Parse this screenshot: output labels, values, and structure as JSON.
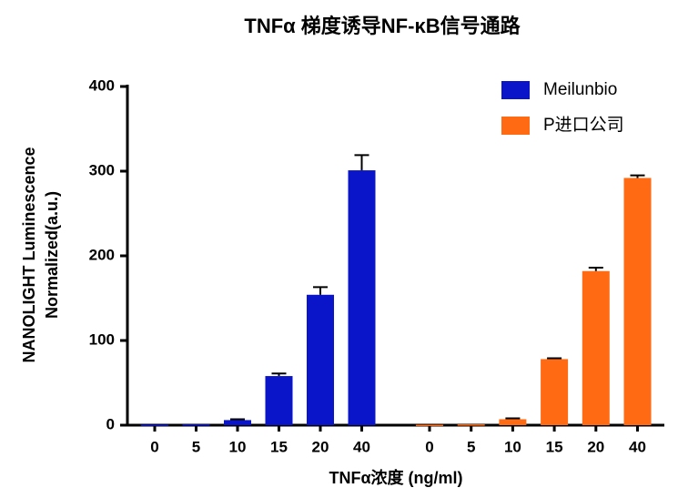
{
  "chart_data": {
    "type": "bar",
    "title": "TNFα 梯度诱导NF-κB信号通路",
    "ylabel": [
      "NANOLIGHT Luminescence",
      "Normalized(a.u.)"
    ],
    "xlabel": "TNFα浓度 (ng/ml)",
    "categories": [
      "0",
      "5",
      "10",
      "15",
      "20",
      "40",
      "0",
      "5",
      "10",
      "15",
      "20",
      "40"
    ],
    "series": [
      {
        "name": "Meilunbio",
        "color": "#0a14c8",
        "values": [
          0.5,
          1,
          6,
          58,
          154,
          301,
          null,
          null,
          null,
          null,
          null,
          null
        ],
        "errors": [
          0,
          0,
          1,
          3,
          9,
          18,
          null,
          null,
          null,
          null,
          null,
          null
        ]
      },
      {
        "name": "P进口公司",
        "color": "#ff6a13",
        "values": [
          null,
          null,
          null,
          null,
          null,
          null,
          0.5,
          1,
          7,
          78,
          182,
          292
        ],
        "errors": [
          null,
          null,
          null,
          null,
          null,
          null,
          0,
          0,
          1,
          1,
          4,
          3
        ]
      }
    ],
    "ylim": [
      0,
      400
    ],
    "yticks": [
      0,
      100,
      200,
      300,
      400
    ],
    "grid": false,
    "legend": "top-right"
  }
}
